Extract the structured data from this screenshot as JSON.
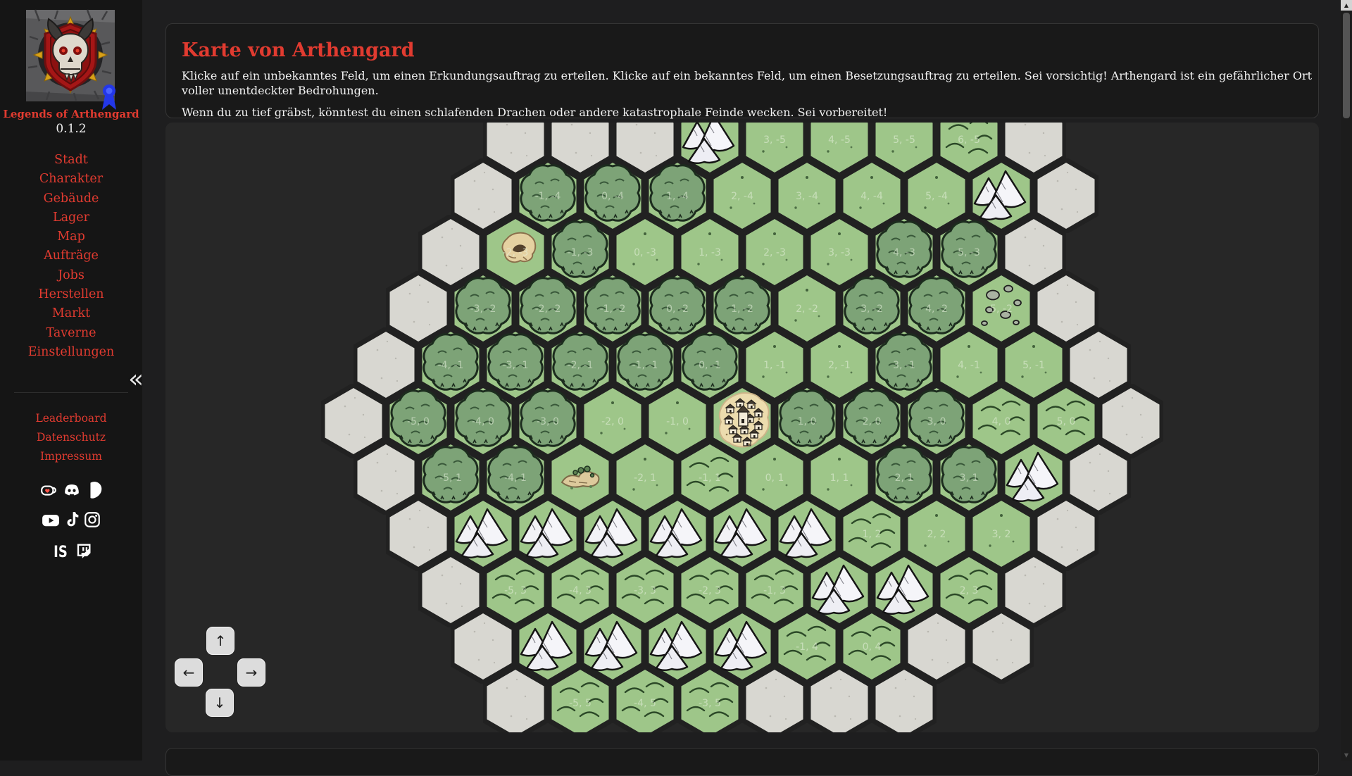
{
  "sidebar": {
    "title": "Legends of Arthengard",
    "version": "0.1.2",
    "collapse_icon": "«",
    "nav": [
      {
        "label": "Stadt"
      },
      {
        "label": "Charakter"
      },
      {
        "label": "Gebäude"
      },
      {
        "label": "Lager"
      },
      {
        "label": "Map"
      },
      {
        "label": "Aufträge"
      },
      {
        "label": "Jobs"
      },
      {
        "label": "Herstellen"
      },
      {
        "label": "Markt"
      },
      {
        "label": "Taverne"
      },
      {
        "label": "Einstellungen"
      }
    ],
    "footer_nav": [
      {
        "label": "Leaderboard"
      },
      {
        "label": "Datenschutz"
      },
      {
        "label": "Impressum"
      }
    ],
    "social_icons": [
      "kofi-icon",
      "discord-icon",
      "patreon-icon",
      "youtube-icon",
      "tiktok-icon",
      "instagram-icon",
      "is-logo-icon",
      "twitch-icon"
    ],
    "is_logo_text": "IS",
    "accent_color": "#e13b30"
  },
  "header": {
    "title": "Karte von Arthengard",
    "description_line1": "Klicke auf ein unbekanntes Feld, um einen Erkundungsauftrag zu erteilen. Klicke auf ein bekanntes Feld, um einen Besetzungsauftrag zu erteilen. Sei vorsichtig! Arthengard ist ein gefährlicher Ort voller unentdeckter Bedrohungen.",
    "description_line2": "Wenn du zu tief gräbst, könntest du einen schlafenden Drachen oder andere katastrophale Feinde wecken. Sei vorbereitet!"
  },
  "map": {
    "controls": {
      "up": "↑",
      "down": "↓",
      "left": "←",
      "right": "→"
    },
    "colors": {
      "background": "#272727",
      "unknown": "#d8d7d1",
      "grass": "#9ec689",
      "forest_blob": "#7da377",
      "mountain": "#f2f2f6",
      "hills_line": "#2b4827",
      "village_ground": "#ecdcae",
      "hex_border": "#212121",
      "label": "#e9f2e0"
    },
    "hexes": [
      {
        "q": -1,
        "r": -5,
        "t": "unknown"
      },
      {
        "q": 0,
        "r": -5,
        "t": "unknown"
      },
      {
        "q": 1,
        "r": -5,
        "t": "unknown"
      },
      {
        "q": 2,
        "r": -5,
        "t": "mountain"
      },
      {
        "q": 3,
        "r": -5,
        "t": "grass"
      },
      {
        "q": 4,
        "r": -5,
        "t": "grass"
      },
      {
        "q": 5,
        "r": -5,
        "t": "grass"
      },
      {
        "q": 6,
        "r": -5,
        "t": "hills"
      },
      {
        "q": 7,
        "r": -5,
        "t": "unknown"
      },
      {
        "q": -2,
        "r": -4,
        "t": "unknown"
      },
      {
        "q": -1,
        "r": -4,
        "t": "forest"
      },
      {
        "q": 0,
        "r": -4,
        "t": "forest"
      },
      {
        "q": 1,
        "r": -4,
        "t": "forest"
      },
      {
        "q": 2,
        "r": -4,
        "t": "grass"
      },
      {
        "q": 3,
        "r": -4,
        "t": "grass"
      },
      {
        "q": 4,
        "r": -4,
        "t": "grass"
      },
      {
        "q": 5,
        "r": -4,
        "t": "grass"
      },
      {
        "q": 6,
        "r": -4,
        "t": "mountain"
      },
      {
        "q": 7,
        "r": -4,
        "t": "unknown"
      },
      {
        "q": -3,
        "r": -3,
        "t": "unknown"
      },
      {
        "q": -2,
        "r": -3,
        "t": "cave"
      },
      {
        "q": -1,
        "r": -3,
        "t": "forest"
      },
      {
        "q": 0,
        "r": -3,
        "t": "grass"
      },
      {
        "q": 1,
        "r": -3,
        "t": "grass"
      },
      {
        "q": 2,
        "r": -3,
        "t": "grass"
      },
      {
        "q": 3,
        "r": -3,
        "t": "grass"
      },
      {
        "q": 4,
        "r": -3,
        "t": "forest"
      },
      {
        "q": 5,
        "r": -3,
        "t": "forest"
      },
      {
        "q": 6,
        "r": -3,
        "t": "unknown"
      },
      {
        "q": -4,
        "r": -2,
        "t": "unknown"
      },
      {
        "q": -3,
        "r": -2,
        "t": "forest"
      },
      {
        "q": -2,
        "r": -2,
        "t": "forest"
      },
      {
        "q": -1,
        "r": -2,
        "t": "forest"
      },
      {
        "q": 0,
        "r": -2,
        "t": "forest"
      },
      {
        "q": 1,
        "r": -2,
        "t": "forest"
      },
      {
        "q": 2,
        "r": -2,
        "t": "grass"
      },
      {
        "q": 3,
        "r": -2,
        "t": "forest"
      },
      {
        "q": 4,
        "r": -2,
        "t": "forest"
      },
      {
        "q": 5,
        "r": -2,
        "t": "rocks"
      },
      {
        "q": 6,
        "r": -2,
        "t": "unknown"
      },
      {
        "q": -5,
        "r": -1,
        "t": "unknown"
      },
      {
        "q": -4,
        "r": -1,
        "t": "forest"
      },
      {
        "q": -3,
        "r": -1,
        "t": "forest"
      },
      {
        "q": -2,
        "r": -1,
        "t": "forest"
      },
      {
        "q": -1,
        "r": -1,
        "t": "forest"
      },
      {
        "q": 0,
        "r": -1,
        "t": "forest"
      },
      {
        "q": 1,
        "r": -1,
        "t": "grass"
      },
      {
        "q": 2,
        "r": -1,
        "t": "grass"
      },
      {
        "q": 3,
        "r": -1,
        "t": "forest"
      },
      {
        "q": 4,
        "r": -1,
        "t": "grass"
      },
      {
        "q": 5,
        "r": -1,
        "t": "grass"
      },
      {
        "q": 6,
        "r": -1,
        "t": "unknown"
      },
      {
        "q": -6,
        "r": 0,
        "t": "unknown"
      },
      {
        "q": -5,
        "r": 0,
        "t": "forest"
      },
      {
        "q": -4,
        "r": 0,
        "t": "forest"
      },
      {
        "q": -3,
        "r": 0,
        "t": "forest"
      },
      {
        "q": -2,
        "r": 0,
        "t": "grass"
      },
      {
        "q": -1,
        "r": 0,
        "t": "grass"
      },
      {
        "q": 0,
        "r": 0,
        "t": "village"
      },
      {
        "q": 1,
        "r": 0,
        "t": "forest"
      },
      {
        "q": 2,
        "r": 0,
        "t": "forest"
      },
      {
        "q": 3,
        "r": 0,
        "t": "forest"
      },
      {
        "q": 4,
        "r": 0,
        "t": "hills"
      },
      {
        "q": 5,
        "r": 0,
        "t": "hills"
      },
      {
        "q": 6,
        "r": 0,
        "t": "unknown"
      },
      {
        "q": -6,
        "r": 1,
        "t": "unknown"
      },
      {
        "q": -5,
        "r": 1,
        "t": "forest"
      },
      {
        "q": -4,
        "r": 1,
        "t": "forest"
      },
      {
        "q": -3,
        "r": 1,
        "t": "ruins"
      },
      {
        "q": -2,
        "r": 1,
        "t": "grass"
      },
      {
        "q": -1,
        "r": 1,
        "t": "hills"
      },
      {
        "q": 0,
        "r": 1,
        "t": "grass"
      },
      {
        "q": 1,
        "r": 1,
        "t": "grass"
      },
      {
        "q": 2,
        "r": 1,
        "t": "forest"
      },
      {
        "q": 3,
        "r": 1,
        "t": "forest"
      },
      {
        "q": 4,
        "r": 1,
        "t": "mountain"
      },
      {
        "q": 5,
        "r": 1,
        "t": "unknown"
      },
      {
        "q": -6,
        "r": 2,
        "t": "unknown"
      },
      {
        "q": -5,
        "r": 2,
        "t": "mountain"
      },
      {
        "q": -4,
        "r": 2,
        "t": "mountain"
      },
      {
        "q": -3,
        "r": 2,
        "t": "mountain"
      },
      {
        "q": -2,
        "r": 2,
        "t": "mountain"
      },
      {
        "q": -1,
        "r": 2,
        "t": "mountain"
      },
      {
        "q": 0,
        "r": 2,
        "t": "mountain"
      },
      {
        "q": 1,
        "r": 2,
        "t": "hills"
      },
      {
        "q": 2,
        "r": 2,
        "t": "grass"
      },
      {
        "q": 3,
        "r": 2,
        "t": "grass"
      },
      {
        "q": 4,
        "r": 2,
        "t": "unknown"
      },
      {
        "q": -6,
        "r": 3,
        "t": "unknown"
      },
      {
        "q": -5,
        "r": 3,
        "t": "hills"
      },
      {
        "q": -4,
        "r": 3,
        "t": "hills"
      },
      {
        "q": -3,
        "r": 3,
        "t": "hills"
      },
      {
        "q": -2,
        "r": 3,
        "t": "hills"
      },
      {
        "q": -1,
        "r": 3,
        "t": "hills"
      },
      {
        "q": 0,
        "r": 3,
        "t": "mountain"
      },
      {
        "q": 1,
        "r": 3,
        "t": "mountain"
      },
      {
        "q": 2,
        "r": 3,
        "t": "hills"
      },
      {
        "q": 3,
        "r": 3,
        "t": "unknown"
      },
      {
        "q": -6,
        "r": 4,
        "t": "unknown"
      },
      {
        "q": -5,
        "r": 4,
        "t": "mountain"
      },
      {
        "q": -4,
        "r": 4,
        "t": "mountain"
      },
      {
        "q": -3,
        "r": 4,
        "t": "mountain"
      },
      {
        "q": -2,
        "r": 4,
        "t": "mountain"
      },
      {
        "q": -1,
        "r": 4,
        "t": "hills"
      },
      {
        "q": 0,
        "r": 4,
        "t": "hills"
      },
      {
        "q": 1,
        "r": 4,
        "t": "unknown"
      },
      {
        "q": 2,
        "r": 4,
        "t": "unknown"
      },
      {
        "q": -6,
        "r": 5,
        "t": "unknown"
      },
      {
        "q": -5,
        "r": 5,
        "t": "hills"
      },
      {
        "q": -4,
        "r": 5,
        "t": "hills"
      },
      {
        "q": -3,
        "r": 5,
        "t": "hills"
      },
      {
        "q": -2,
        "r": 5,
        "t": "unknown"
      },
      {
        "q": -1,
        "r": 5,
        "t": "unknown"
      },
      {
        "q": 0,
        "r": 5,
        "t": "unknown"
      }
    ]
  }
}
